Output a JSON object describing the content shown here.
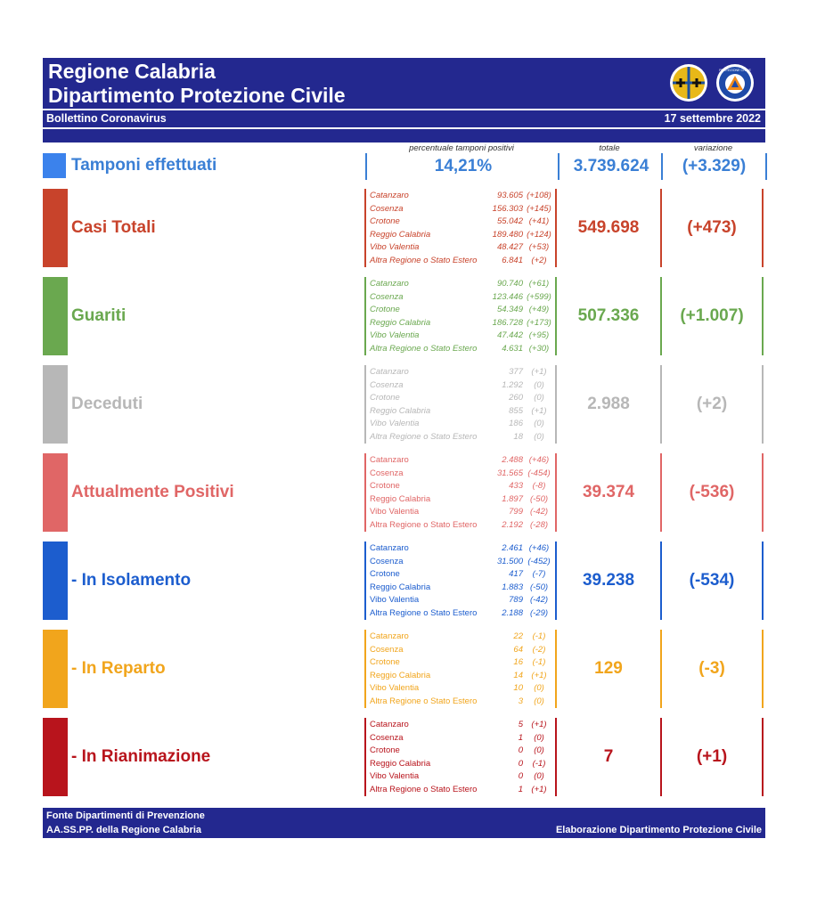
{
  "header": {
    "title_line1": "Regione Calabria",
    "title_line2": "Dipartimento Protezione Civile",
    "subtitle": "Bollettino Coronavirus",
    "date": "17 settembre 2022",
    "logo2_text": "PROTEZIONE CIVILE"
  },
  "columns": {
    "pct_header": "percentuale tamponi positivi",
    "total_header": "totale",
    "variation_header": "variazione"
  },
  "tamponi": {
    "label": "Tamponi effettuati",
    "pct": "14,21%",
    "total": "3.739.624",
    "variation": "(+3.329)",
    "color": "#3a7fd5"
  },
  "rows": [
    {
      "label": "Casi Totali",
      "color": "#c8432b",
      "total": "549.698",
      "variation": "(+473)",
      "italic": true,
      "provinces": [
        {
          "name": "Catanzaro",
          "value": "93.605",
          "diff": "(+108)"
        },
        {
          "name": "Cosenza",
          "value": "156.303",
          "diff": "(+145)"
        },
        {
          "name": "Crotone",
          "value": "55.042",
          "diff": "(+41)"
        },
        {
          "name": "Reggio Calabria",
          "value": "189.480",
          "diff": "(+124)"
        },
        {
          "name": "Vibo Valentia",
          "value": "48.427",
          "diff": "(+53)"
        },
        {
          "name": "Altra Regione o Stato Estero",
          "value": "6.841",
          "diff": "(+2)"
        }
      ]
    },
    {
      "label": "Guariti",
      "color": "#6aa84f",
      "total": "507.336",
      "variation": "(+1.007)",
      "italic": true,
      "provinces": [
        {
          "name": "Catanzaro",
          "value": "90.740",
          "diff": "(+61)"
        },
        {
          "name": "Cosenza",
          "value": "123.446",
          "diff": "(+599)"
        },
        {
          "name": "Crotone",
          "value": "54.349",
          "diff": "(+49)"
        },
        {
          "name": "Reggio Calabria",
          "value": "186.728",
          "diff": "(+173)"
        },
        {
          "name": "Vibo Valentia",
          "value": "47.442",
          "diff": "(+95)"
        },
        {
          "name": "Altra Regione o Stato Estero",
          "value": "4.631",
          "diff": "(+30)"
        }
      ]
    },
    {
      "label": "Deceduti",
      "color": "#b7b7b7",
      "total": "2.988",
      "variation": "(+2)",
      "italic": true,
      "provinces": [
        {
          "name": "Catanzaro",
          "value": "377",
          "diff": "(+1)"
        },
        {
          "name": "Cosenza",
          "value": "1.292",
          "diff": "(0)"
        },
        {
          "name": "Crotone",
          "value": "260",
          "diff": "(0)"
        },
        {
          "name": "Reggio Calabria",
          "value": "855",
          "diff": "(+1)"
        },
        {
          "name": "Vibo Valentia",
          "value": "186",
          "diff": "(0)"
        },
        {
          "name": "Altra Regione o Stato Estero",
          "value": "18",
          "diff": "(0)"
        }
      ]
    },
    {
      "label": "Attualmente Positivi",
      "color": "#e06666",
      "total": "39.374",
      "variation": "(-536)",
      "italic": false,
      "provinces": [
        {
          "name": "Catanzaro",
          "value": "2.488",
          "diff": "(+46)"
        },
        {
          "name": "Cosenza",
          "value": "31.565",
          "diff": "(-454)"
        },
        {
          "name": "Crotone",
          "value": "433",
          "diff": "(-8)"
        },
        {
          "name": "Reggio Calabria",
          "value": "1.897",
          "diff": "(-50)"
        },
        {
          "name": "Vibo Valentia",
          "value": "799",
          "diff": "(-42)"
        },
        {
          "name": "Altra Regione o Stato Estero",
          "value": "2.192",
          "diff": "(-28)"
        }
      ]
    },
    {
      "label": " - In Isolamento",
      "color": "#1c5dce",
      "total": "39.238",
      "variation": "(-534)",
      "italic": false,
      "provinces": [
        {
          "name": "Catanzaro",
          "value": "2.461",
          "diff": "(+46)"
        },
        {
          "name": "Cosenza",
          "value": "31.500",
          "diff": "(-452)"
        },
        {
          "name": "Crotone",
          "value": "417",
          "diff": "(-7)"
        },
        {
          "name": "Reggio Calabria",
          "value": "1.883",
          "diff": "(-50)"
        },
        {
          "name": "Vibo Valentia",
          "value": "789",
          "diff": "(-42)"
        },
        {
          "name": "Altra Regione o Stato Estero",
          "value": "2.188",
          "diff": "(-29)"
        }
      ]
    },
    {
      "label": " - In Reparto",
      "color": "#f1a51c",
      "total": "129",
      "variation": "(-3)",
      "italic": false,
      "provinces": [
        {
          "name": "Catanzaro",
          "value": "22",
          "diff": "(-1)"
        },
        {
          "name": "Cosenza",
          "value": "64",
          "diff": "(-2)"
        },
        {
          "name": "Crotone",
          "value": "16",
          "diff": "(-1)"
        },
        {
          "name": "Reggio Calabria",
          "value": "14",
          "diff": "(+1)"
        },
        {
          "name": "Vibo Valentia",
          "value": "10",
          "diff": "(0)"
        },
        {
          "name": "Altra Regione o Stato Estero",
          "value": "3",
          "diff": "(0)"
        }
      ]
    },
    {
      "label": " - In Rianimazione",
      "color": "#b8141c",
      "total": "7",
      "variation": "(+1)",
      "italic": false,
      "provinces": [
        {
          "name": "Catanzaro",
          "value": "5",
          "diff": "(+1)"
        },
        {
          "name": "Cosenza",
          "value": "1",
          "diff": "(0)"
        },
        {
          "name": "Crotone",
          "value": "0",
          "diff": "(0)"
        },
        {
          "name": "Reggio Calabria",
          "value": "0",
          "diff": "(-1)"
        },
        {
          "name": "Vibo Valentia",
          "value": "0",
          "diff": "(0)"
        },
        {
          "name": "Altra Regione o Stato Estero",
          "value": "1",
          "diff": "(+1)"
        }
      ]
    }
  ],
  "footer": {
    "line1": "Fonte Dipartimenti di Prevenzione",
    "line2": "AA.SS.PP.  della Regione Calabria",
    "right": "Elaborazione Dipartimento Protezione Civile"
  }
}
